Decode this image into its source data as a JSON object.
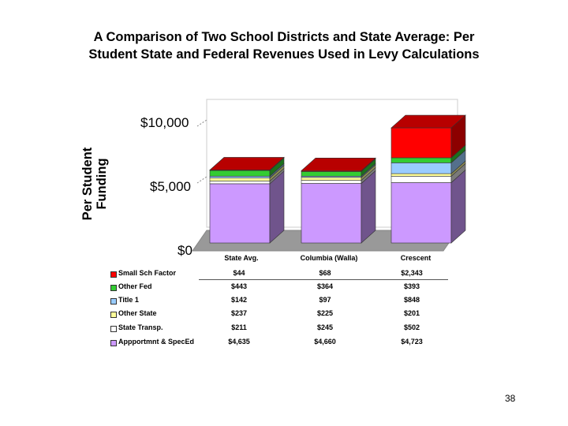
{
  "chart_data": {
    "type": "bar",
    "stacked": true,
    "title_line1": "A Comparison of Two School Districts and State Average:  Per",
    "title_line2": "Student State and Federal Revenues Used in Levy Calculations",
    "ylabel_line1": "Per Student",
    "ylabel_line2": "Funding",
    "ylim": [
      0,
      12000
    ],
    "ytick_labels": [
      "$10,000",
      "$5,000",
      "$0"
    ],
    "categories": [
      "State Avg.",
      "Columbia (Walla)",
      "Crescent"
    ],
    "series": [
      {
        "name": "Appportmnt & SpecEd",
        "color": "#cc99ff",
        "values": [
          4635,
          4660,
          4723
        ],
        "labels": [
          "$4,635",
          "$4,660",
          "$4,723"
        ]
      },
      {
        "name": "State Transp.",
        "color": "#ffffff",
        "values": [
          211,
          245,
          502
        ],
        "labels": [
          "$211",
          "$245",
          "$502"
        ]
      },
      {
        "name": "Other State",
        "color": "#ffff99",
        "values": [
          237,
          225,
          201
        ],
        "labels": [
          "$237",
          "$225",
          "$201"
        ]
      },
      {
        "name": "Title 1",
        "color": "#99ccff",
        "values": [
          142,
          97,
          848
        ],
        "labels": [
          "$142",
          "$97",
          "$848"
        ]
      },
      {
        "name": "Other Fed",
        "color": "#33cc33",
        "values": [
          443,
          364,
          393
        ],
        "labels": [
          "$443",
          "$364",
          "$393"
        ]
      },
      {
        "name": "Small Sch Factor",
        "color": "#ff0000",
        "values": [
          44,
          68,
          2343
        ],
        "labels": [
          "$44",
          "$68",
          "$2,343"
        ]
      }
    ]
  },
  "legend_order_top_to_bottom": [
    "Small Sch Factor",
    "Other Fed",
    "Title 1",
    "Other State",
    "State Transp.",
    "Appportmnt & SpecEd"
  ],
  "page_number": "38"
}
